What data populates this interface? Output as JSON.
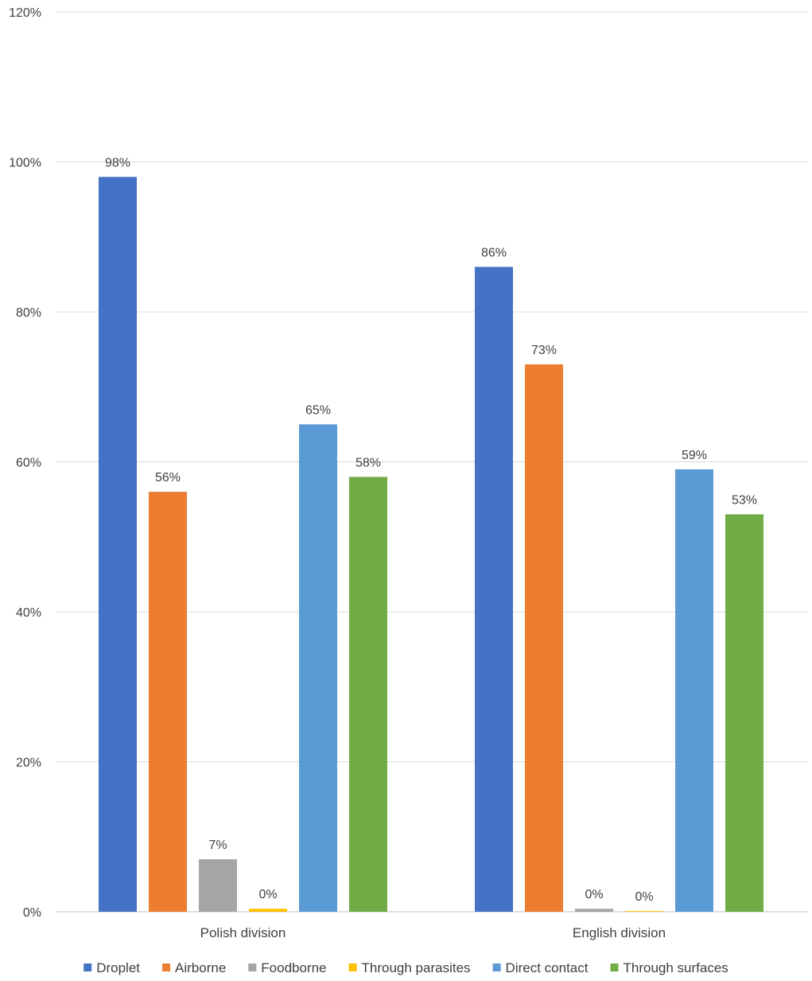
{
  "chart_data": {
    "type": "bar",
    "categories": [
      "Polish division",
      "English division"
    ],
    "series": [
      {
        "name": "Droplet",
        "color": "#4472C4",
        "values": [
          98,
          86
        ],
        "labels": [
          "98%",
          "86%"
        ]
      },
      {
        "name": "Airborne",
        "color": "#ED7D31",
        "values": [
          56,
          73
        ],
        "labels": [
          "56%",
          "73%"
        ]
      },
      {
        "name": "Foodborne",
        "color": "#A5A5A5",
        "values": [
          7,
          0.4
        ],
        "labels": [
          "7%",
          "0%"
        ]
      },
      {
        "name": "Through parasites",
        "color": "#FFC000",
        "values": [
          0.4,
          0.1
        ],
        "labels": [
          "0%",
          "0%"
        ]
      },
      {
        "name": "Direct contact",
        "color": "#5B9BD5",
        "values": [
          65,
          59
        ],
        "labels": [
          "65%",
          "59%"
        ]
      },
      {
        "name": "Through surfaces",
        "color": "#70AD47",
        "values": [
          58,
          53
        ],
        "labels": [
          "58%",
          "53%"
        ]
      }
    ],
    "ylim": [
      0,
      120
    ],
    "yticks": [
      0,
      20,
      40,
      60,
      80,
      100,
      120
    ],
    "ytick_labels": [
      "0%",
      "20%",
      "40%",
      "60%",
      "80%",
      "100%",
      "120%"
    ],
    "title": "",
    "xlabel": "",
    "ylabel": "",
    "grid": true,
    "legend": "bottom"
  }
}
